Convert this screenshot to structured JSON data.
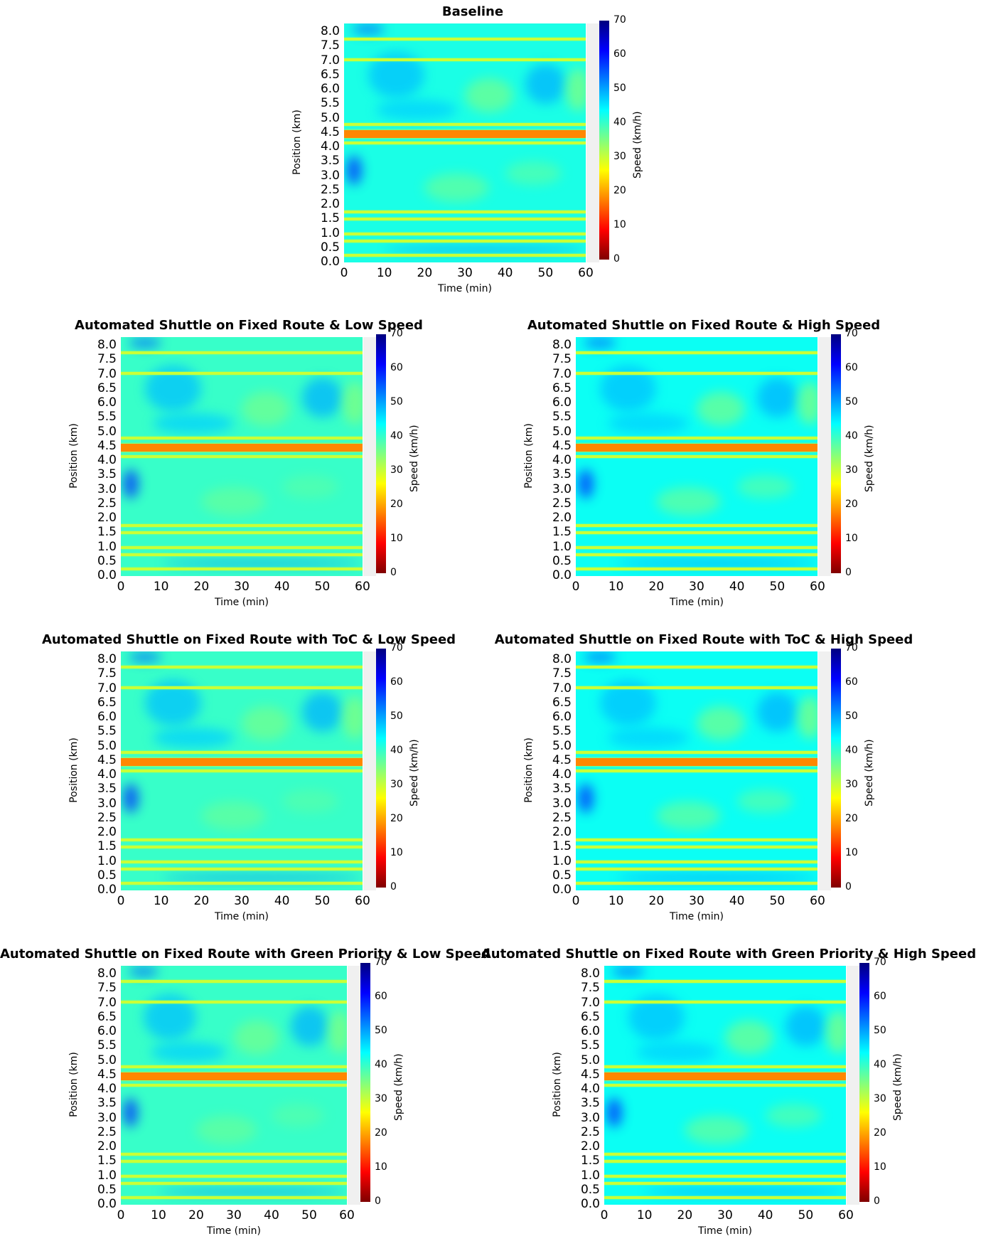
{
  "chart_data": [
    {
      "type": "heatmap",
      "title": "Baseline",
      "xlabel": "Time (min)",
      "ylabel": "Position (km)",
      "colorbar_label": "Speed (km/h)",
      "xlim": [
        0,
        60
      ],
      "ylim": [
        0,
        8.3
      ],
      "x_ticks": [
        "0",
        "10",
        "20",
        "30",
        "40",
        "50",
        "60"
      ],
      "y_ticks": [
        "0.0",
        "0.5",
        "1.0",
        "1.5",
        "2.0",
        "2.5",
        "3.0",
        "3.5",
        "4.0",
        "4.5",
        "5.0",
        "5.5",
        "6.0",
        "6.5",
        "7.0",
        "7.5",
        "8.0"
      ],
      "colorbar_range": [
        0,
        70
      ],
      "colorbar_ticks": [
        "0",
        "10",
        "20",
        "30",
        "40",
        "50",
        "60",
        "70"
      ],
      "low_speed_bands_km": [
        4.45,
        4.15,
        4.8,
        7.75,
        7.05,
        1.75,
        1.5,
        1.0,
        0.75,
        0.25
      ],
      "congested_band_speed_kmh": 18,
      "typical_speed_kmh": 42
    },
    {
      "type": "heatmap",
      "title": "Automated Shuttle on Fixed Route & Low Speed",
      "xlabel": "Time (min)",
      "ylabel": "Position (km)",
      "colorbar_label": "Speed (km/h)",
      "xlim": [
        0,
        60
      ],
      "ylim": [
        0,
        8.3
      ],
      "x_ticks": [
        "0",
        "10",
        "20",
        "30",
        "40",
        "50",
        "60"
      ],
      "y_ticks": [
        "0.0",
        "0.5",
        "1.0",
        "1.5",
        "2.0",
        "2.5",
        "3.0",
        "3.5",
        "4.0",
        "4.5",
        "5.0",
        "5.5",
        "6.0",
        "6.5",
        "7.0",
        "7.5",
        "8.0"
      ],
      "colorbar_range": [
        0,
        70
      ],
      "colorbar_ticks": [
        "0",
        "10",
        "20",
        "30",
        "40",
        "50",
        "60",
        "70"
      ],
      "low_speed_bands_km": [
        4.45,
        4.15,
        4.8,
        7.75,
        7.05,
        1.75,
        1.5,
        1.0,
        0.75,
        0.25
      ],
      "congested_band_speed_kmh": 18,
      "typical_speed_kmh": 40
    },
    {
      "type": "heatmap",
      "title": "Automated Shuttle on Fixed Route & High Speed",
      "xlabel": "Time (min)",
      "ylabel": "Position (km)",
      "colorbar_label": "Speed (km/h)",
      "xlim": [
        0,
        60
      ],
      "ylim": [
        0,
        8.3
      ],
      "x_ticks": [
        "0",
        "10",
        "20",
        "30",
        "40",
        "50",
        "60"
      ],
      "y_ticks": [
        "0.0",
        "0.5",
        "1.0",
        "1.5",
        "2.0",
        "2.5",
        "3.0",
        "3.5",
        "4.0",
        "4.5",
        "5.0",
        "5.5",
        "6.0",
        "6.5",
        "7.0",
        "7.5",
        "8.0"
      ],
      "colorbar_range": [
        0,
        70
      ],
      "colorbar_ticks": [
        "0",
        "10",
        "20",
        "30",
        "40",
        "50",
        "60",
        "70"
      ],
      "low_speed_bands_km": [
        4.45,
        4.15,
        4.8,
        7.75,
        7.05,
        1.75,
        1.5,
        1.0,
        0.75,
        0.25
      ],
      "congested_band_speed_kmh": 18,
      "typical_speed_kmh": 43
    },
    {
      "type": "heatmap",
      "title": "Automated Shuttle on Fixed Route with ToC & Low Speed",
      "xlabel": "Time (min)",
      "ylabel": "Position (km)",
      "colorbar_label": "Speed (km/h)",
      "xlim": [
        0,
        60
      ],
      "ylim": [
        0,
        8.3
      ],
      "x_ticks": [
        "0",
        "10",
        "20",
        "30",
        "40",
        "50",
        "60"
      ],
      "y_ticks": [
        "0.0",
        "0.5",
        "1.0",
        "1.5",
        "2.0",
        "2.5",
        "3.0",
        "3.5",
        "4.0",
        "4.5",
        "5.0",
        "5.5",
        "6.0",
        "6.5",
        "7.0",
        "7.5",
        "8.0"
      ],
      "colorbar_range": [
        0,
        70
      ],
      "colorbar_ticks": [
        "0",
        "10",
        "20",
        "30",
        "40",
        "50",
        "60",
        "70"
      ],
      "low_speed_bands_km": [
        4.45,
        4.15,
        4.8,
        7.75,
        7.05,
        1.75,
        1.5,
        1.0,
        0.75,
        0.25
      ],
      "congested_band_speed_kmh": 18,
      "typical_speed_kmh": 40
    },
    {
      "type": "heatmap",
      "title": "Automated Shuttle on Fixed Route with ToC & High Speed",
      "xlabel": "Time (min)",
      "ylabel": "Position (km)",
      "colorbar_label": "Speed (km/h)",
      "xlim": [
        0,
        60
      ],
      "ylim": [
        0,
        8.3
      ],
      "x_ticks": [
        "0",
        "10",
        "20",
        "30",
        "40",
        "50",
        "60"
      ],
      "y_ticks": [
        "0.0",
        "0.5",
        "1.0",
        "1.5",
        "2.0",
        "2.5",
        "3.0",
        "3.5",
        "4.0",
        "4.5",
        "5.0",
        "5.5",
        "6.0",
        "6.5",
        "7.0",
        "7.5",
        "8.0"
      ],
      "colorbar_range": [
        0,
        70
      ],
      "colorbar_ticks": [
        "0",
        "10",
        "20",
        "30",
        "40",
        "50",
        "60",
        "70"
      ],
      "low_speed_bands_km": [
        4.45,
        4.15,
        4.8,
        7.75,
        7.05,
        1.75,
        1.5,
        1.0,
        0.75,
        0.25
      ],
      "congested_band_speed_kmh": 18,
      "typical_speed_kmh": 43
    },
    {
      "type": "heatmap",
      "title": "Automated Shuttle on Fixed Route with Green Priority & Low Speed",
      "xlabel": "Time (min)",
      "ylabel": "Position (km)",
      "colorbar_label": "Speed (km/h)",
      "xlim": [
        0,
        60
      ],
      "ylim": [
        0,
        8.3
      ],
      "x_ticks": [
        "0",
        "10",
        "20",
        "30",
        "40",
        "50",
        "60"
      ],
      "y_ticks": [
        "0.0",
        "0.5",
        "1.0",
        "1.5",
        "2.0",
        "2.5",
        "3.0",
        "3.5",
        "4.0",
        "4.5",
        "5.0",
        "5.5",
        "6.0",
        "6.5",
        "7.0",
        "7.5",
        "8.0"
      ],
      "colorbar_range": [
        0,
        70
      ],
      "colorbar_ticks": [
        "0",
        "10",
        "20",
        "30",
        "40",
        "50",
        "60",
        "70"
      ],
      "low_speed_bands_km": [
        4.45,
        4.15,
        4.8,
        7.75,
        7.05,
        1.75,
        1.5,
        1.0,
        0.75,
        0.25
      ],
      "congested_band_speed_kmh": 18,
      "typical_speed_kmh": 40
    },
    {
      "type": "heatmap",
      "title": "Automated Shuttle on Fixed Route with Green Priority & High Speed",
      "xlabel": "Time (min)",
      "ylabel": "Position (km)",
      "colorbar_label": "Speed (km/h)",
      "xlim": [
        0,
        60
      ],
      "ylim": [
        0,
        8.3
      ],
      "x_ticks": [
        "0",
        "10",
        "20",
        "30",
        "40",
        "50",
        "60"
      ],
      "y_ticks": [
        "0.0",
        "0.5",
        "1.0",
        "1.5",
        "2.0",
        "2.5",
        "3.0",
        "3.5",
        "4.0",
        "4.5",
        "5.0",
        "5.5",
        "6.0",
        "6.5",
        "7.0",
        "7.5",
        "8.0"
      ],
      "colorbar_range": [
        0,
        70
      ],
      "colorbar_ticks": [
        "0",
        "10",
        "20",
        "30",
        "40",
        "50",
        "60",
        "70"
      ],
      "low_speed_bands_km": [
        4.45,
        4.15,
        4.8,
        7.75,
        7.05,
        1.75,
        1.5,
        1.0,
        0.75,
        0.25
      ],
      "congested_band_speed_kmh": 18,
      "typical_speed_kmh": 43
    }
  ],
  "colormap": {
    "name": "jet_r",
    "stops": [
      "#7f0000",
      "#ff0000",
      "#ff8000",
      "#ffff00",
      "#80ff80",
      "#00ffff",
      "#0080ff",
      "#0000ff",
      "#00007f"
    ]
  }
}
